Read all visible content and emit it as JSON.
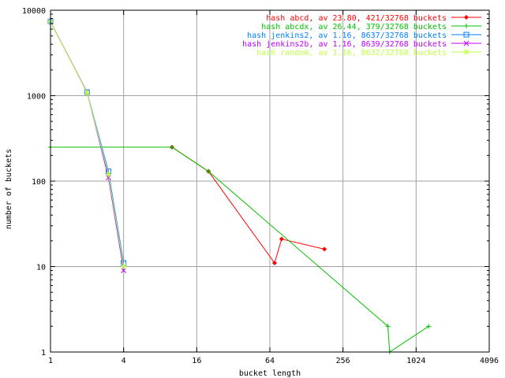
{
  "chart_data": {
    "type": "line",
    "title": "",
    "xlabel": "bucket length",
    "ylabel": "number of buckets",
    "x_scale": "log2",
    "y_scale": "log10",
    "xlim": [
      1,
      4096
    ],
    "ylim": [
      1,
      10000
    ],
    "x_ticks": [
      "1",
      "4",
      "16",
      "64",
      "256",
      "1024",
      "4096"
    ],
    "y_ticks": [
      "1",
      "10",
      "100",
      "1000",
      "10000"
    ],
    "grid": true,
    "legend_position": "top-right",
    "series": [
      {
        "name": "hash abcd, av 23.80, 421/32768 buckets",
        "color": "#ff0000",
        "marker": "diamond",
        "x": [
          10,
          20,
          70,
          80,
          180
        ],
        "y": [
          250,
          130,
          11,
          21,
          16
        ]
      },
      {
        "name": "hash abcdx, av 26.44, 379/32768 buckets",
        "color": "#00c000",
        "marker": "plus",
        "x": [
          1,
          10,
          20,
          600,
          620,
          1300
        ],
        "y": [
          250,
          250,
          130,
          2,
          1,
          2
        ]
      },
      {
        "name": "hash jenkins2, av 1.16, 8637/32768 buckets",
        "color": "#0080ff",
        "marker": "square",
        "x": [
          1,
          2,
          3,
          4
        ],
        "y": [
          7400,
          1100,
          130,
          11
        ]
      },
      {
        "name": "hash jenkins2b, av 1.16, 8639/32768 buckets",
        "color": "#c000ff",
        "marker": "cross",
        "x": [
          1,
          2,
          3,
          4
        ],
        "y": [
          7300,
          1090,
          110,
          9
        ]
      },
      {
        "name": "hash random, av 1.16, 8632/32768 buckets",
        "color": "#c0ff40",
        "marker": "star",
        "x": [
          1,
          2,
          3,
          4
        ],
        "y": [
          7350,
          1080,
          120,
          10
        ]
      }
    ]
  }
}
